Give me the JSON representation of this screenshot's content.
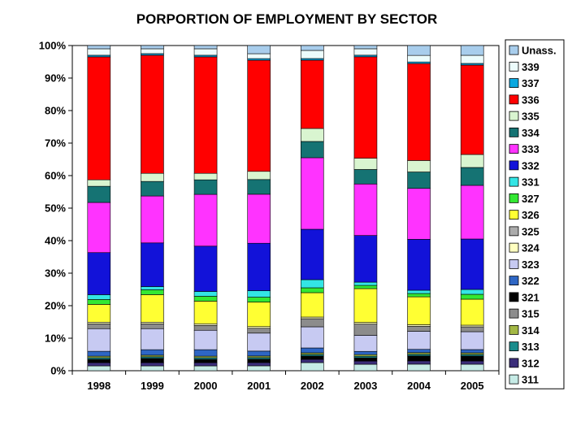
{
  "chart_data": {
    "type": "bar",
    "stacked": true,
    "title": "PORPORTION OF EMPLOYMENT BY SECTOR",
    "xlabel": "",
    "ylabel": "",
    "ylim": [
      0,
      100
    ],
    "y_unit": "%",
    "y_ticks": [
      "0%",
      "10%",
      "20%",
      "30%",
      "40%",
      "50%",
      "60%",
      "70%",
      "80%",
      "90%",
      "100%"
    ],
    "legend_position": "right",
    "grid": false,
    "categories": [
      "1998",
      "1999",
      "2000",
      "2001",
      "2002",
      "2003",
      "2004",
      "2005"
    ],
    "series": [
      {
        "name": "311",
        "color": "#c6ebe6",
        "values": [
          1.5,
          1.5,
          1.5,
          1.5,
          2.5,
          2.0,
          2.0,
          2.0
        ]
      },
      {
        "name": "312",
        "color": "#3b2d7a",
        "values": [
          1.0,
          1.0,
          1.0,
          1.0,
          1.0,
          1.0,
          1.0,
          1.0
        ]
      },
      {
        "name": "321",
        "color": "#000000",
        "values": [
          1.0,
          1.3,
          1.0,
          1.0,
          1.0,
          1.0,
          1.5,
          1.5
        ]
      },
      {
        "name": "313",
        "color": "#1a8c8c",
        "values": [
          0.5,
          0.5,
          0.5,
          0.5,
          0.5,
          0.5,
          0.5,
          0.5
        ]
      },
      {
        "name": "314",
        "color": "#a3b845",
        "values": [
          0.5,
          0.5,
          0.5,
          0.5,
          0.5,
          0.5,
          0.5,
          0.5
        ]
      },
      {
        "name": "322",
        "color": "#2e66c4",
        "values": [
          1.5,
          1.7,
          2.0,
          1.5,
          1.5,
          1.0,
          1.0,
          1.0
        ]
      },
      {
        "name": "323",
        "color": "#c7caf2",
        "values": [
          7.0,
          6.5,
          6.0,
          5.5,
          6.5,
          5.0,
          5.5,
          5.5
        ]
      },
      {
        "name": "315",
        "color": "#8c8c8c",
        "values": [
          1.5,
          1.5,
          1.5,
          1.5,
          2.5,
          3.5,
          1.5,
          1.5
        ]
      },
      {
        "name": "324",
        "color": "#ffffc0",
        "values": [
          0.5,
          0.5,
          0.5,
          0.5,
          0.5,
          0.5,
          0.5,
          0.5
        ]
      },
      {
        "name": "326",
        "color": "#ffff33",
        "values": [
          5.5,
          8.5,
          7.0,
          7.5,
          7.5,
          10.5,
          8.5,
          8.0
        ]
      },
      {
        "name": "325",
        "color": "#ababab",
        "values": [
          0.0,
          0.0,
          0.0,
          0.0,
          0.0,
          0.0,
          0.0,
          0.0
        ]
      },
      {
        "name": "327",
        "color": "#33e833",
        "values": [
          1.5,
          1.5,
          1.5,
          1.5,
          1.5,
          1.0,
          1.0,
          1.5
        ]
      },
      {
        "name": "331",
        "color": "#33e5e5",
        "values": [
          1.5,
          1.0,
          1.5,
          2.0,
          2.5,
          1.0,
          1.0,
          1.5
        ]
      },
      {
        "name": "332",
        "color": "#1212d9",
        "values": [
          13.0,
          13.5,
          14.0,
          14.5,
          15.5,
          14.5,
          15.5,
          15.5
        ]
      },
      {
        "name": "333",
        "color": "#ff33ff",
        "values": [
          15.5,
          14.5,
          16.0,
          15.0,
          22.0,
          16.0,
          15.5,
          16.5
        ]
      },
      {
        "name": "334",
        "color": "#157373",
        "values": [
          5.0,
          4.5,
          4.5,
          4.5,
          5.0,
          4.5,
          5.0,
          5.5
        ]
      },
      {
        "name": "335",
        "color": "#d9f5d0",
        "values": [
          2.0,
          2.5,
          2.0,
          2.5,
          4.0,
          3.5,
          3.5,
          4.0
        ]
      },
      {
        "name": "336",
        "color": "#ff0000",
        "values": [
          38.0,
          36.5,
          36.0,
          34.0,
          21.0,
          31.5,
          29.5,
          27.5
        ]
      },
      {
        "name": "337",
        "color": "#0aa8e0",
        "values": [
          0.5,
          0.5,
          0.5,
          0.5,
          0.5,
          0.5,
          0.5,
          0.5
        ]
      },
      {
        "name": "339",
        "color": "#ecfcfc",
        "values": [
          2.0,
          1.5,
          2.0,
          1.5,
          2.5,
          2.0,
          2.0,
          2.5
        ]
      },
      {
        "name": "Unass.",
        "color": "#a8cdec",
        "values": [
          1.0,
          1.0,
          1.0,
          2.5,
          1.5,
          1.0,
          3.0,
          3.0
        ]
      }
    ],
    "legend_order": [
      "Unass.",
      "339",
      "337",
      "336",
      "335",
      "334",
      "333",
      "332",
      "331",
      "327",
      "326",
      "325",
      "324",
      "323",
      "322",
      "321",
      "315",
      "314",
      "313",
      "312",
      "311"
    ]
  }
}
